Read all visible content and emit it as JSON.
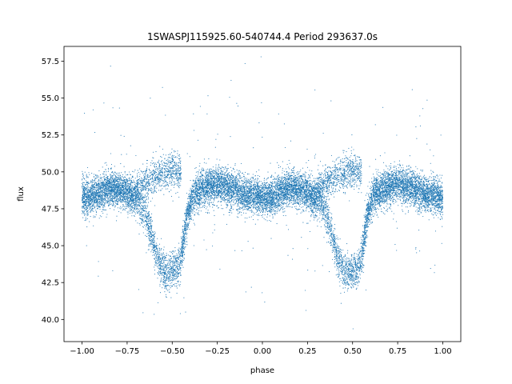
{
  "chart_data": {
    "type": "scatter",
    "title": "1SWASPJ115925.60-540744.4 Period 293637.0s",
    "xlabel": "phase",
    "ylabel": "flux",
    "xlim": [
      -1.1,
      1.1
    ],
    "ylim": [
      38.5,
      58.5
    ],
    "x_ticks": [
      -1.0,
      -0.75,
      -0.5,
      -0.25,
      0.0,
      0.25,
      0.5,
      0.75,
      1.0
    ],
    "x_tick_labels": [
      "−1.00",
      "−0.75",
      "−0.50",
      "−0.25",
      "0.00",
      "0.25",
      "0.50",
      "0.75",
      "1.00"
    ],
    "y_ticks": [
      40.0,
      42.5,
      45.0,
      47.5,
      50.0,
      52.5,
      55.0,
      57.5
    ],
    "y_tick_labels": [
      "40.0",
      "42.5",
      "45.0",
      "47.5",
      "50.0",
      "52.5",
      "55.0",
      "57.5"
    ],
    "grid": false,
    "marker_color": "#1f77b4",
    "phase_range": [
      -1.0,
      1.0
    ],
    "light_curve_profile": {
      "phase": [
        0.0,
        0.05,
        0.1,
        0.15,
        0.2,
        0.25,
        0.3,
        0.32,
        0.35,
        0.38,
        0.42,
        0.46,
        0.5,
        0.54,
        0.56,
        0.58,
        0.62,
        0.66,
        0.7,
        0.75,
        0.8,
        0.85,
        0.9,
        0.95,
        1.0
      ],
      "flux": [
        48.2,
        48.3,
        48.6,
        48.9,
        48.8,
        48.6,
        48.2,
        48.0,
        47.2,
        46.0,
        44.0,
        43.2,
        43.3,
        43.6,
        45.0,
        47.0,
        48.5,
        48.8,
        49.0,
        49.2,
        49.0,
        48.8,
        48.5,
        48.4,
        48.2
      ]
    },
    "upper_branch": {
      "phase": [
        0.3,
        0.35,
        0.4,
        0.45,
        0.5,
        0.55
      ],
      "flux": [
        48.6,
        49.2,
        49.6,
        49.9,
        50.1,
        49.8
      ]
    },
    "flux_scatter": 0.6,
    "approx_points": 16000
  }
}
